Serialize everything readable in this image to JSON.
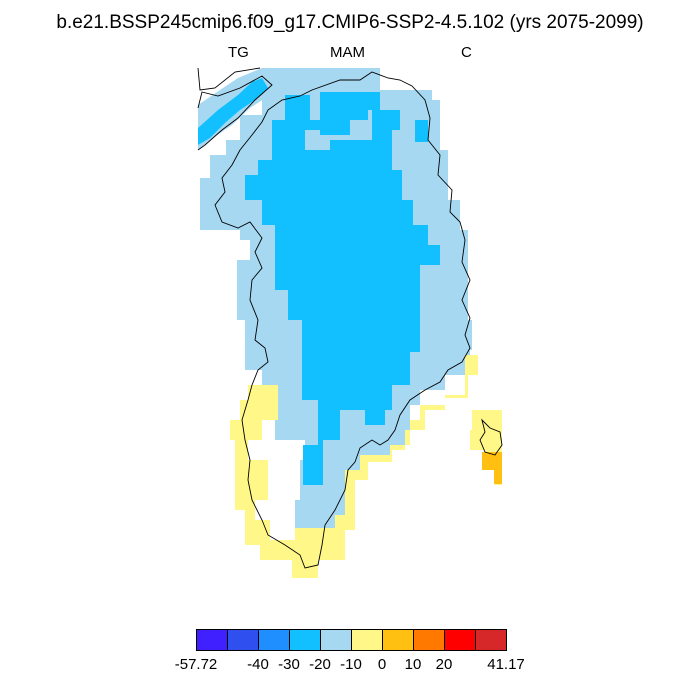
{
  "title": "b.e21.BSSP245cmip6.f09_g17.CMIP6-SSP2-4.5.102 (yrs 2075-2099)",
  "subtitle_left": "TG",
  "subtitle_center": "MAM",
  "subtitle_right": "C",
  "colorbar": {
    "colors": [
      "#4020ff",
      "#2f4fef",
      "#1f8fff",
      "#12c0ff",
      "#a6d8f2",
      "#fff888",
      "#ffc012",
      "#ff7800",
      "#ff0000",
      "#d62828"
    ],
    "labels": [
      "-57.72",
      "-40",
      "-30",
      "-20",
      "-10",
      "0",
      "10",
      "20",
      "41.17"
    ]
  },
  "map_colors": {
    "cold": "#12c0ff",
    "cool": "#a6d8f2",
    "warm": "#fff888",
    "hot": "#ffc012",
    "coast": "#000000"
  }
}
